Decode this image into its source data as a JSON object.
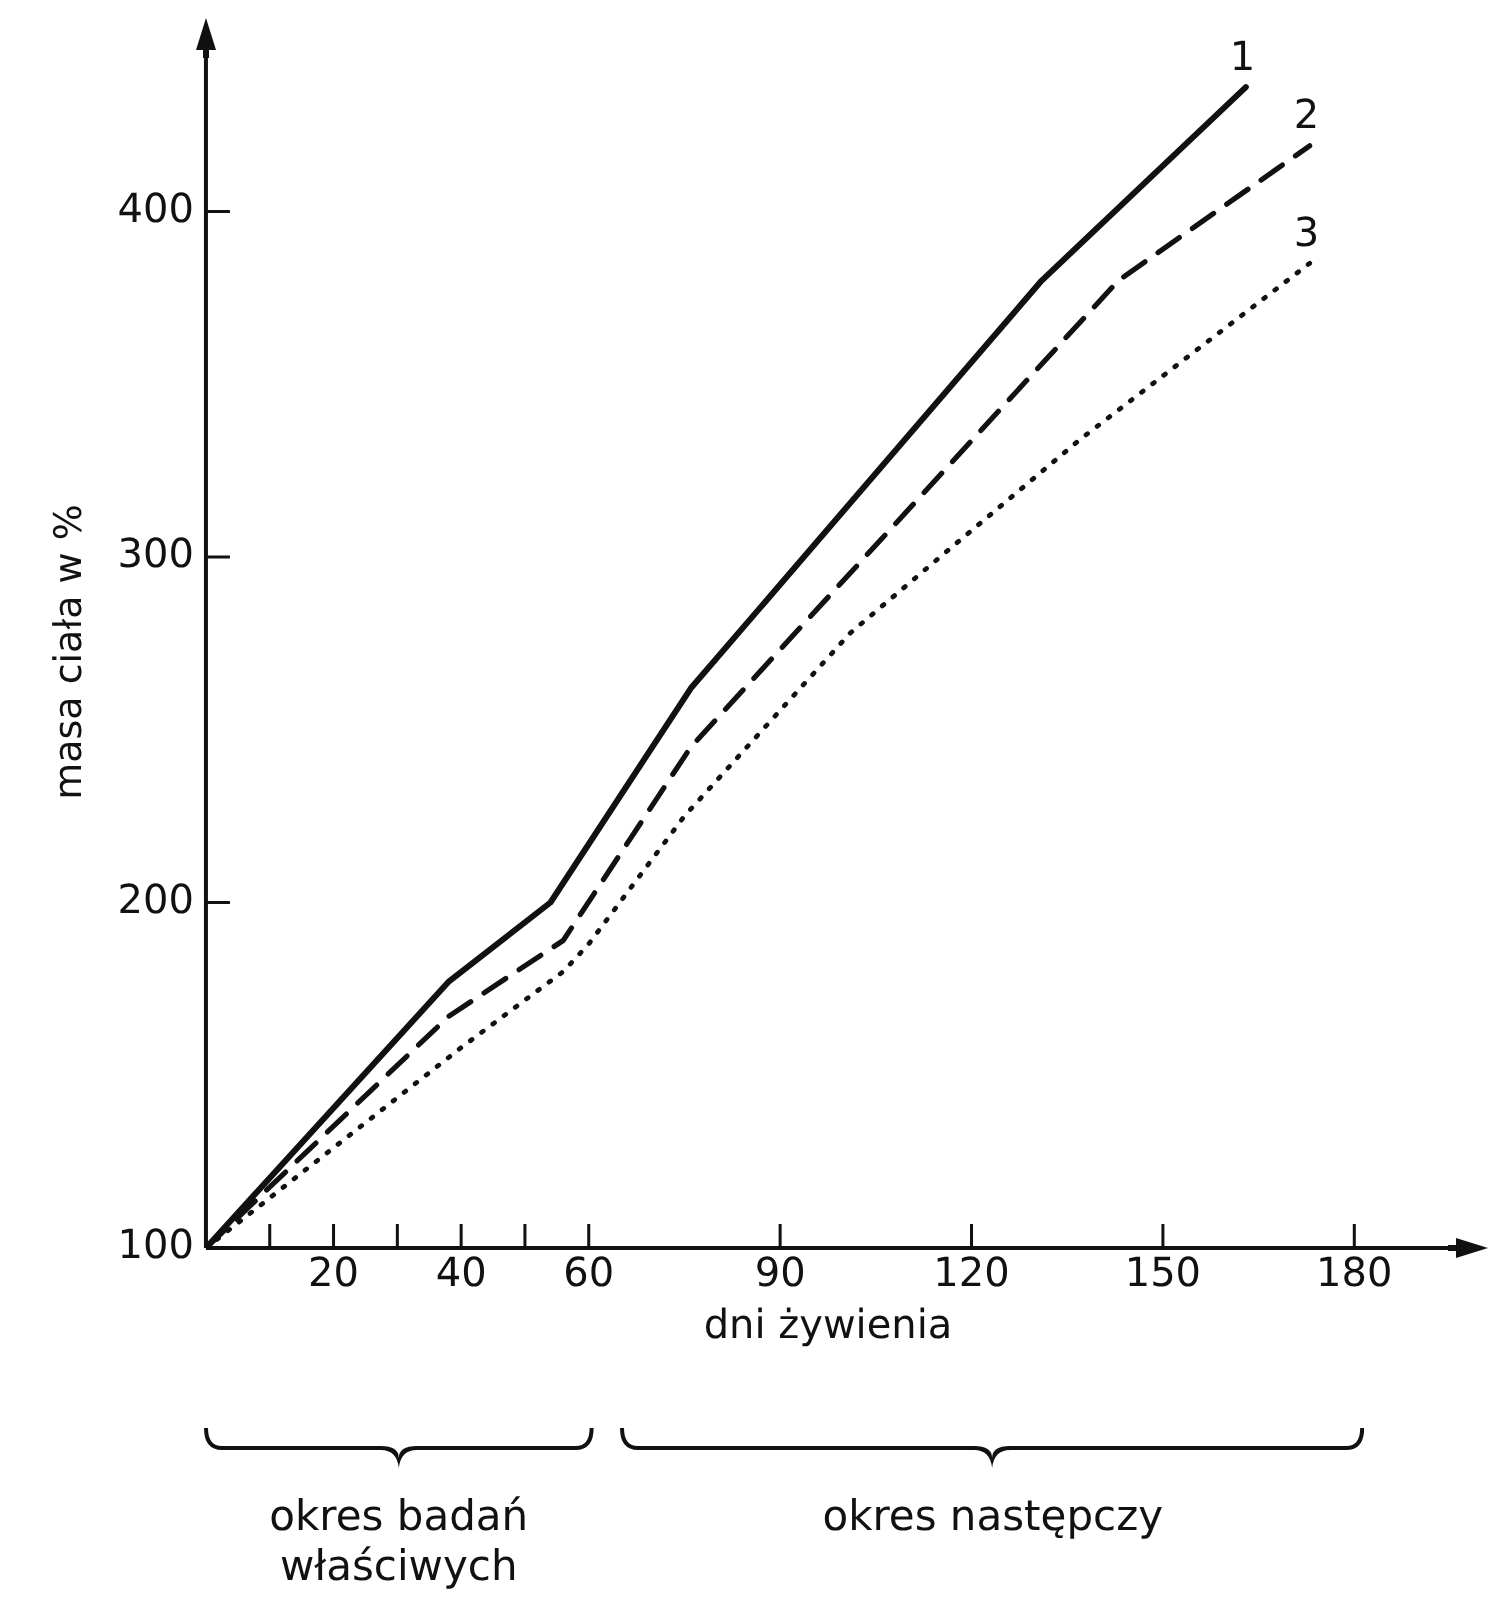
{
  "chart_data": {
    "type": "line",
    "xlabel": "dni żywienia",
    "ylabel": "masa ciała w %",
    "xlim": [
      0,
      195
    ],
    "ylim": [
      100,
      445
    ],
    "xticks": [
      {
        "value": 10,
        "label": null
      },
      20,
      {
        "value": 30,
        "label": null
      },
      40,
      {
        "value": 50,
        "label": null
      },
      60,
      90,
      120,
      150,
      180
    ],
    "yticks": [
      100,
      200,
      300,
      400
    ],
    "series": [
      {
        "name": "1",
        "color": "#111111",
        "line_style": "solid",
        "x": [
          0,
          38,
          54,
          76,
          131,
          163
        ],
        "values": [
          100,
          177,
          200,
          262,
          380,
          436
        ]
      },
      {
        "name": "2",
        "color": "#111111",
        "line_style": "dashed",
        "x": [
          0,
          38,
          56,
          76,
          143,
          173
        ],
        "values": [
          100,
          167,
          189,
          245,
          380,
          419
        ]
      },
      {
        "name": "3",
        "color": "#111111",
        "line_style": "dotted",
        "x": [
          0,
          40,
          56,
          60,
          75,
          101,
          117,
          137,
          173
        ],
        "values": [
          100,
          158,
          180,
          188,
          225,
          278,
          303,
          334,
          385
        ]
      }
    ],
    "annotations": [
      "okres badań właściwych",
      "okres następczy"
    ],
    "marker": "none",
    "grid": false,
    "legend": false
  }
}
